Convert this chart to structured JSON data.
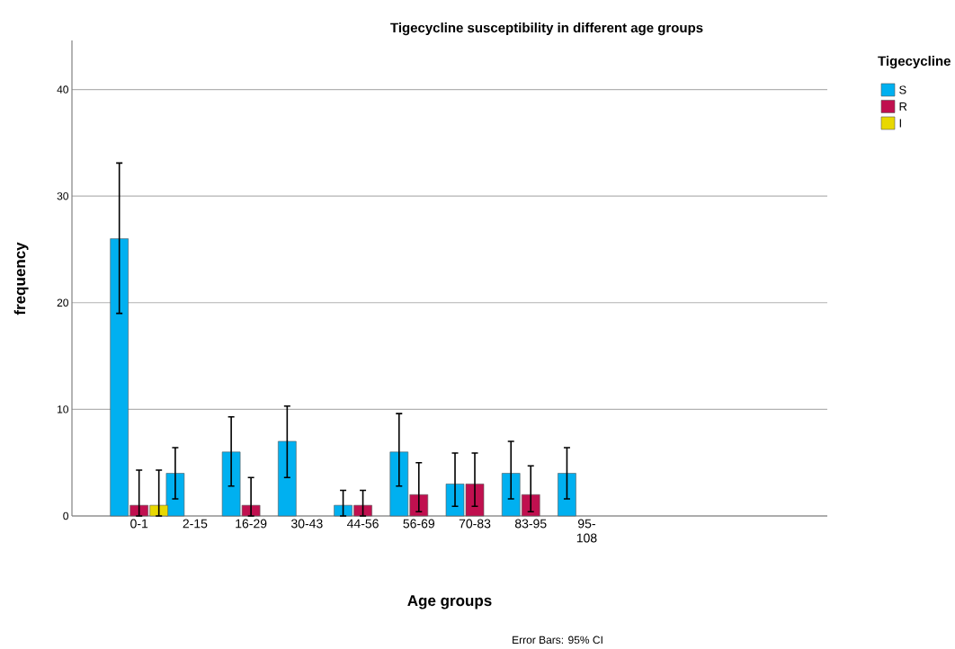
{
  "chart_data": {
    "type": "bar",
    "title": "Tigecycline susceptibility in different age groups",
    "xlabel": "Age groups",
    "ylabel": "frequency",
    "legend_title": "Tigecycline",
    "categories": [
      "0-1",
      "2-15",
      "16-29",
      "30-43",
      "44-56",
      "56-69",
      "70-83",
      "83-95",
      "95-108"
    ],
    "series": [
      {
        "name": "S",
        "color": "#00b0f0",
        "values": [
          26,
          4,
          6,
          7,
          1,
          6,
          3,
          4,
          4
        ],
        "errors": [
          [
            19.0,
            33.1
          ],
          [
            1.6,
            6.4
          ],
          [
            2.8,
            9.3
          ],
          [
            3.6,
            10.3
          ],
          [
            0,
            2.4
          ],
          [
            2.8,
            9.6
          ],
          [
            0.9,
            5.9
          ],
          [
            1.6,
            7.0
          ],
          [
            1.6,
            6.4
          ]
        ]
      },
      {
        "name": "R",
        "color": "#c0104f",
        "values": [
          1,
          null,
          1,
          null,
          1,
          2,
          3,
          2,
          null
        ],
        "errors": [
          [
            0,
            4.3
          ],
          null,
          [
            0,
            3.6
          ],
          null,
          [
            0,
            2.4
          ],
          [
            0.4,
            5.0
          ],
          [
            0.9,
            5.9
          ],
          [
            0.4,
            4.7
          ],
          null
        ]
      },
      {
        "name": "I",
        "color": "#e8d800",
        "values": [
          1,
          null,
          null,
          null,
          null,
          null,
          null,
          null,
          null
        ],
        "errors": [
          [
            0,
            4.3
          ],
          null,
          null,
          null,
          null,
          null,
          null,
          null,
          null
        ]
      }
    ],
    "ylim": [
      0,
      44.6
    ],
    "yticks": [
      0,
      10,
      20,
      30,
      40
    ],
    "grid": "y",
    "legend": "top right",
    "annotations": [
      "Error Bars: 95% CI"
    ]
  }
}
